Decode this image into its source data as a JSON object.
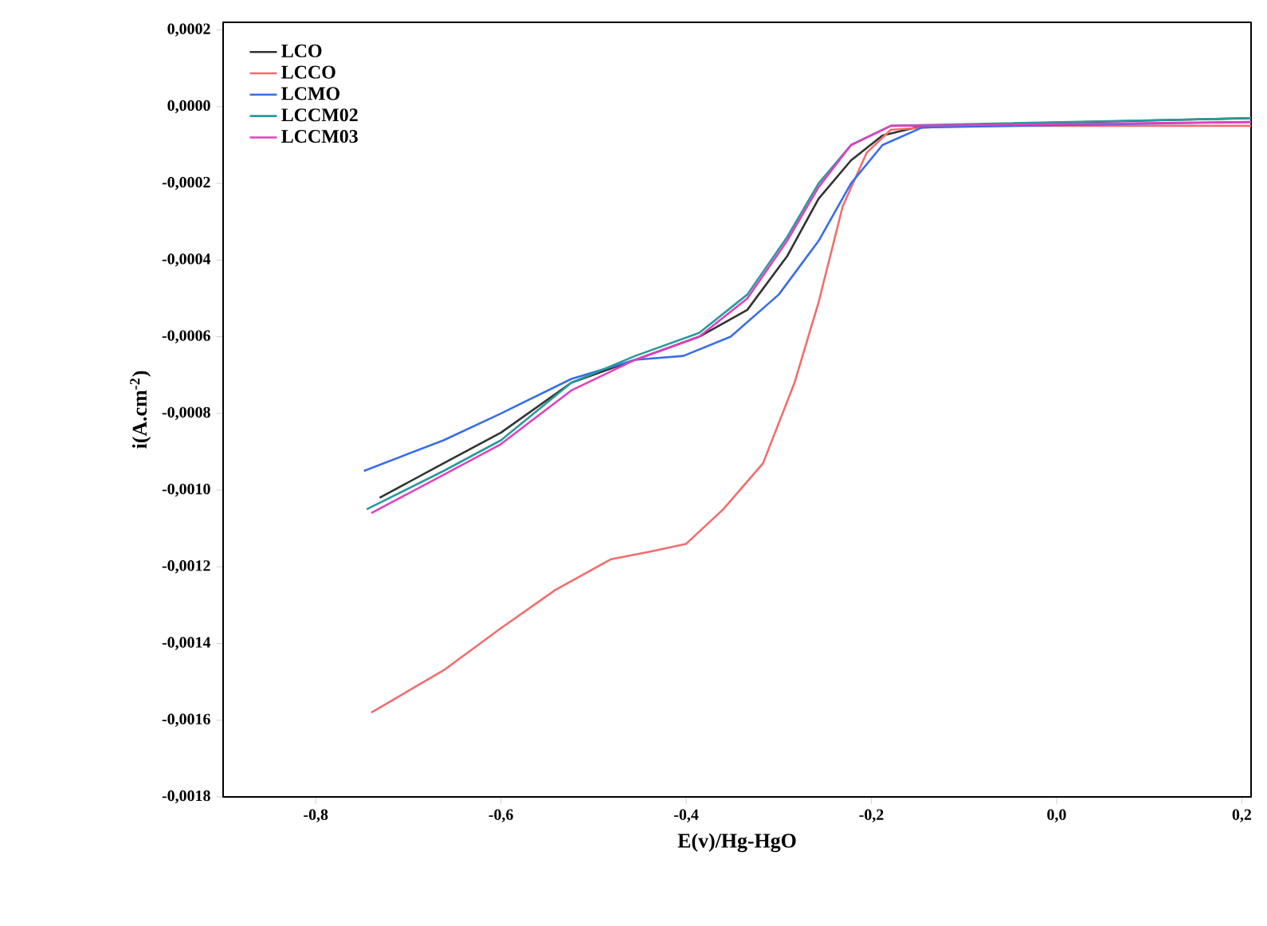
{
  "chart_data": {
    "type": "line",
    "xlabel": "E(v)/Hg-HgO",
    "ylabel": "i(A.cm$^{-2}$)",
    "xlim": [
      -0.9,
      0.21
    ],
    "ylim": [
      -0.0018,
      0.00022
    ],
    "xticks": [
      {
        "value": -0.8,
        "label": "-0,8"
      },
      {
        "value": -0.6,
        "label": "-0,6"
      },
      {
        "value": -0.4,
        "label": "-0,4"
      },
      {
        "value": -0.2,
        "label": "-0,2"
      },
      {
        "value": 0.0,
        "label": "0,0"
      },
      {
        "value": 0.2,
        "label": "0,2"
      }
    ],
    "yticks": [
      {
        "value": 0.0002,
        "label": "0,0002"
      },
      {
        "value": 0.0,
        "label": "0,0000"
      },
      {
        "value": -0.0002,
        "label": "-0,0002"
      },
      {
        "value": -0.0004,
        "label": "-0,0004"
      },
      {
        "value": -0.0006,
        "label": "-0,0006"
      },
      {
        "value": -0.0008,
        "label": "-0,0008"
      },
      {
        "value": -0.001,
        "label": "-0,0010"
      },
      {
        "value": -0.0012,
        "label": "-0,0012"
      },
      {
        "value": -0.0014,
        "label": "-0,0014"
      },
      {
        "value": -0.0016,
        "label": "-0,0016"
      },
      {
        "value": -0.0018,
        "label": "-0,0018"
      }
    ],
    "legend": "top left",
    "grid": false,
    "line_style": "solid",
    "series": [
      {
        "name": "LCO",
        "color": "#333333",
        "x": [
          -0.731,
          -0.662,
          -0.6,
          -0.524,
          -0.455,
          -0.386,
          -0.334,
          -0.291,
          -0.257,
          -0.222,
          -0.188,
          -0.145,
          0.21
        ],
        "values": [
          -0.00102,
          -0.00093,
          -0.00085,
          -0.00072,
          -0.00066,
          -0.0006,
          -0.00053,
          -0.00039,
          -0.00024,
          -0.00014,
          -7.5e-05,
          -5e-05,
          -3e-05
        ]
      },
      {
        "name": "LCCO",
        "color": "#f26d6d",
        "x": [
          -0.74,
          -0.662,
          -0.6,
          -0.541,
          -0.481,
          -0.438,
          -0.4,
          -0.36,
          -0.317,
          -0.283,
          -0.257,
          -0.231,
          -0.205,
          -0.179,
          -0.11,
          0.21
        ],
        "values": [
          -0.00158,
          -0.00147,
          -0.00136,
          -0.00126,
          -0.00118,
          -0.00116,
          -0.00114,
          -0.00105,
          -0.00093,
          -0.00072,
          -0.00051,
          -0.00026,
          -0.00012,
          -6e-05,
          -5e-05,
          -5e-05
        ]
      },
      {
        "name": "LCMO",
        "color": "#3a6ee8",
        "x": [
          -0.748,
          -0.662,
          -0.6,
          -0.524,
          -0.455,
          -0.403,
          -0.352,
          -0.3,
          -0.257,
          -0.222,
          -0.188,
          -0.145,
          0.21
        ],
        "values": [
          -0.00095,
          -0.00087,
          -0.0008,
          -0.00071,
          -0.00066,
          -0.00065,
          -0.0006,
          -0.00049,
          -0.00035,
          -0.0002,
          -0.0001,
          -5.4e-05,
          -4e-05
        ]
      },
      {
        "name": "LCCM02",
        "color": "#2a9a9a",
        "x": [
          -0.745,
          -0.662,
          -0.6,
          -0.524,
          -0.455,
          -0.386,
          -0.334,
          -0.291,
          -0.257,
          -0.222,
          -0.179,
          0.21
        ],
        "values": [
          -0.00105,
          -0.00095,
          -0.00087,
          -0.00072,
          -0.00065,
          -0.00059,
          -0.00049,
          -0.00034,
          -0.0002,
          -0.0001,
          -5e-05,
          -3e-05
        ]
      },
      {
        "name": "LCCM03",
        "color": "#e040c0",
        "x": [
          -0.74,
          -0.662,
          -0.6,
          -0.524,
          -0.455,
          -0.386,
          -0.334,
          -0.291,
          -0.257,
          -0.222,
          -0.179,
          0.21
        ],
        "values": [
          -0.00106,
          -0.00096,
          -0.00088,
          -0.00074,
          -0.00066,
          -0.0006,
          -0.0005,
          -0.00035,
          -0.00021,
          -0.0001,
          -5e-05,
          -4e-05
        ]
      }
    ]
  }
}
